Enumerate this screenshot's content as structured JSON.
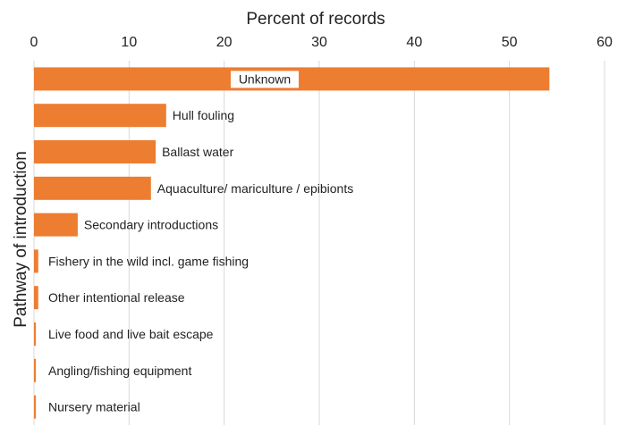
{
  "chart_data": {
    "type": "bar",
    "orientation": "horizontal",
    "xlabel": "Percent of records",
    "ylabel": "Pathway of introduction",
    "xlim": [
      0,
      60
    ],
    "xticks": [
      0,
      10,
      20,
      30,
      40,
      50,
      60
    ],
    "grid": true,
    "bar_color": "#ED7D31",
    "categories": [
      "Unknown",
      "Hull fouling",
      "Ballast water",
      "Aquaculture/ mariculture / epibionts",
      "Secondary introductions",
      "Fishery in the wild incl. game fishing",
      "Other intentional release",
      "Live food and live bait escape",
      "Angling/fishing equipment",
      "Nursery material"
    ],
    "values": [
      54.2,
      13.9,
      12.8,
      12.3,
      4.6,
      0.45,
      0.45,
      0.2,
      0.2,
      0.2
    ]
  }
}
